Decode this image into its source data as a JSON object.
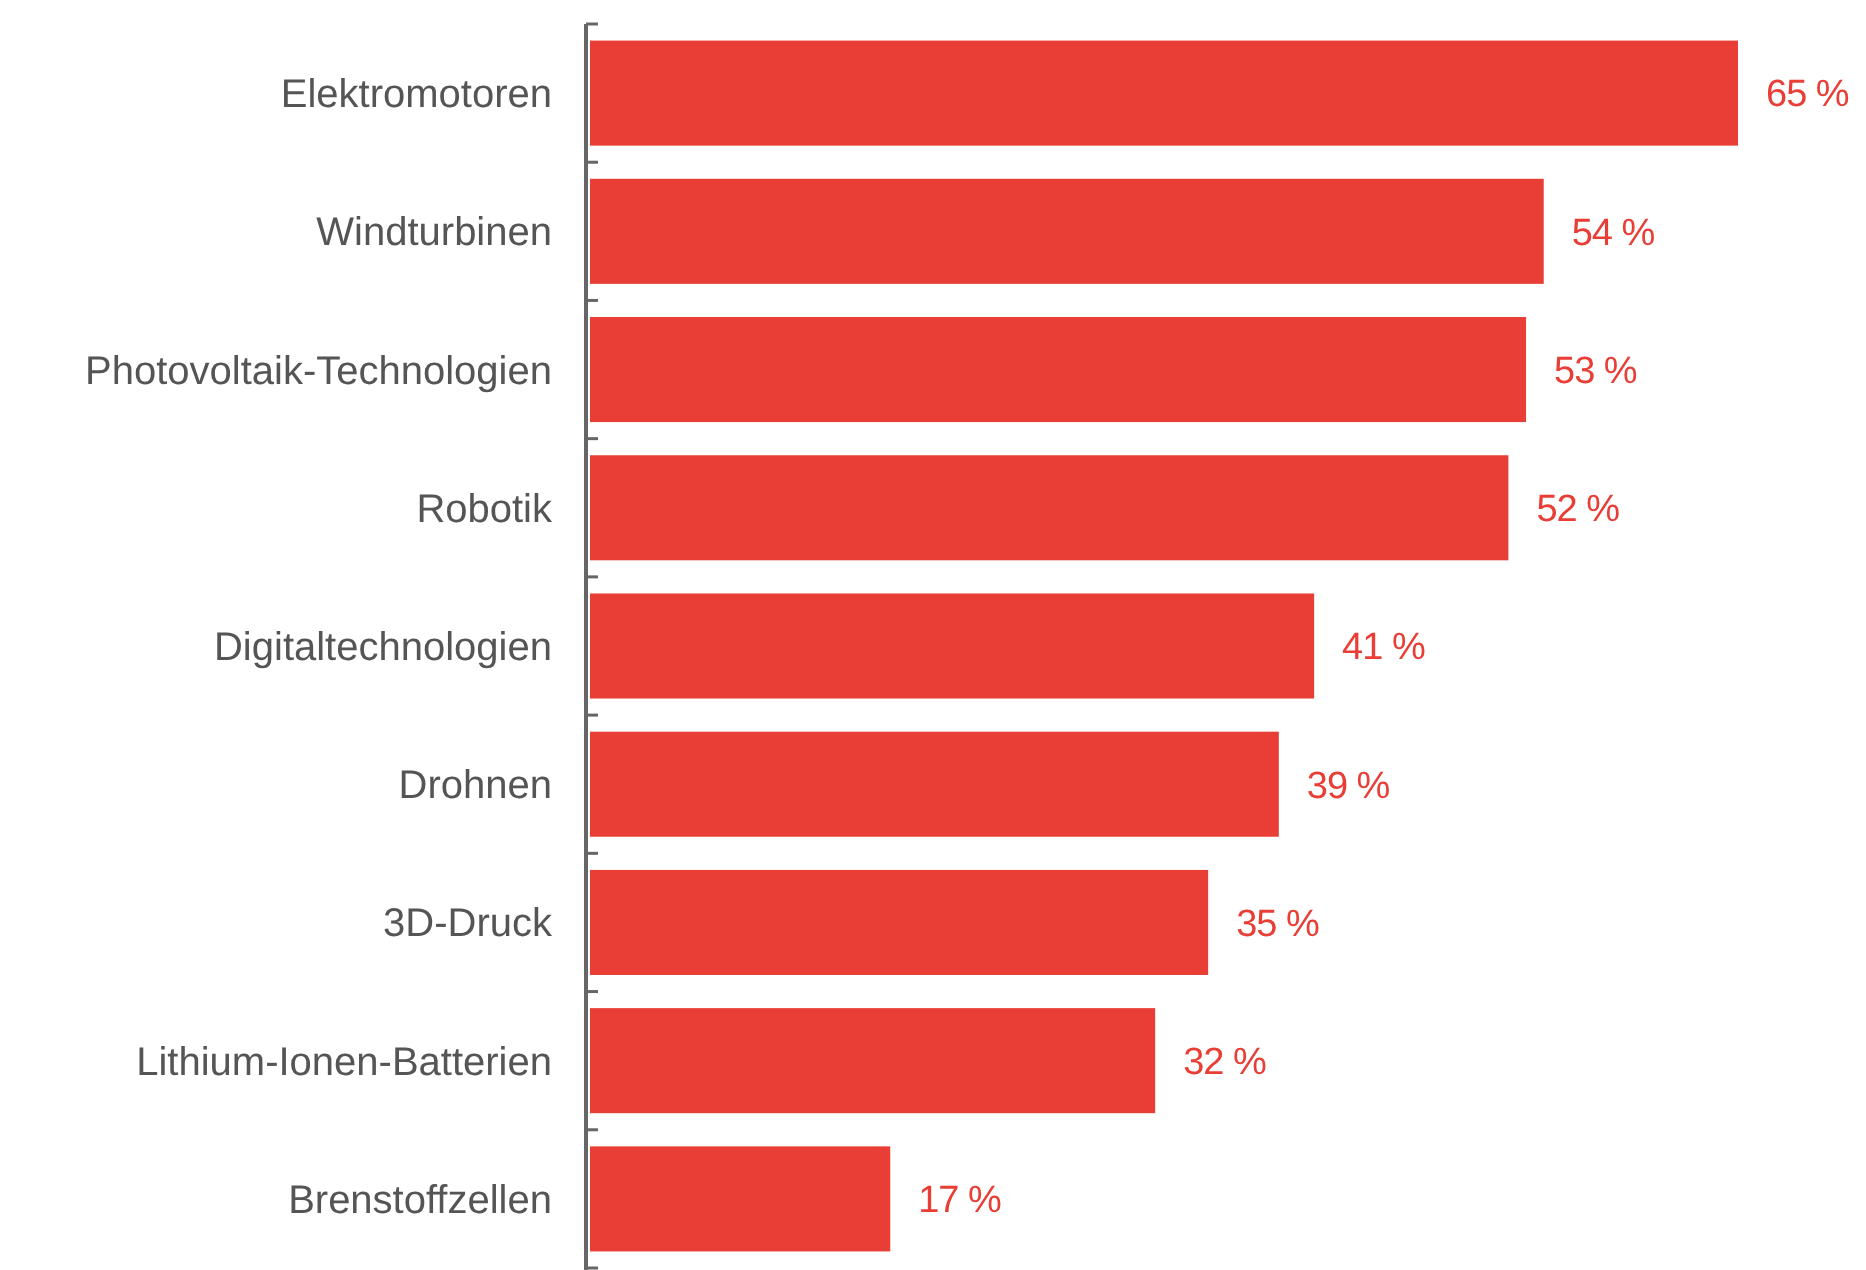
{
  "chart_data": {
    "type": "bar",
    "orientation": "horizontal",
    "categories": [
      "Elektromotoren",
      "Windturbinen",
      "Photovoltaik-Technologien",
      "Robotik",
      "Digitaltechnologien",
      "Drohnen",
      "3D-Druck",
      "Lithium-Ionen-Batterien",
      "Brenstoffzellen"
    ],
    "values": [
      65,
      54,
      53,
      52,
      41,
      39,
      35,
      32,
      17
    ],
    "value_labels": [
      "65 %",
      "54 %",
      "53 %",
      "52 %",
      "41 %",
      "39 %",
      "35 %",
      "32 %",
      "17 %"
    ],
    "color": "#e83e35"
  }
}
